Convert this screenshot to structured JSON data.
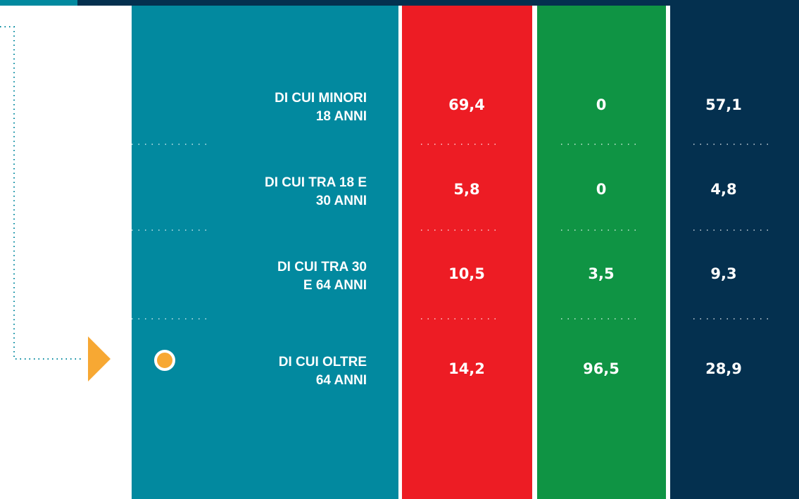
{
  "table": {
    "rows": [
      {
        "label": [
          "DI CUI MINORI",
          "18 ANNI"
        ],
        "values": [
          "69,4",
          "0",
          "57,1"
        ]
      },
      {
        "label": [
          "DI CUI TRA 18 E",
          "30 ANNI"
        ],
        "values": [
          "5,8",
          "0",
          "4,8"
        ]
      },
      {
        "label": [
          "DI CUI TRA 30",
          "E 64 ANNI"
        ],
        "values": [
          "10,5",
          "3,5",
          "9,3"
        ]
      },
      {
        "label": [
          "DI CUI OLTRE",
          "64 ANNI"
        ],
        "values": [
          "14,2",
          "96,5",
          "28,9"
        ]
      }
    ]
  }
}
